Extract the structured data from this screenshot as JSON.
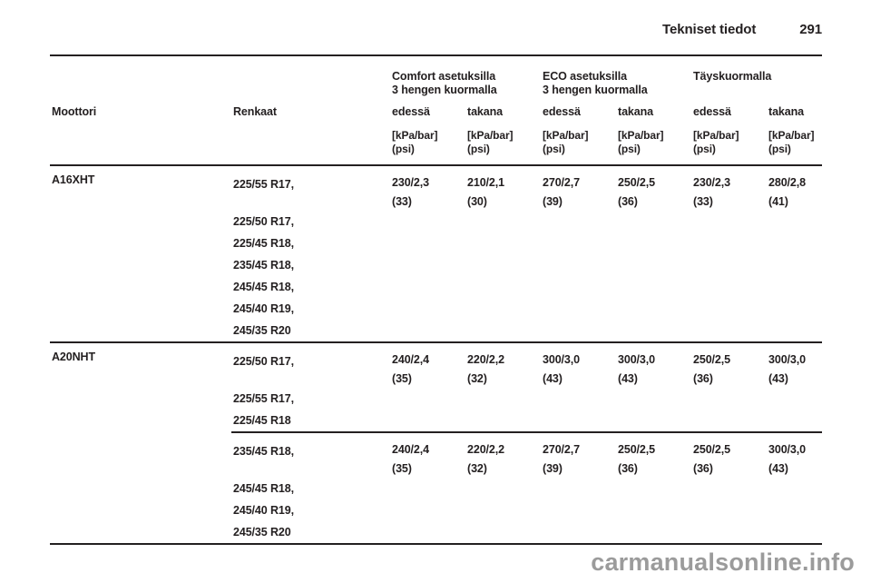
{
  "page": {
    "title": "Tekniset tiedot",
    "page_number": "291",
    "watermark": "carmanualsonline.info"
  },
  "colors": {
    "text": "#242021",
    "rule": "#242021",
    "watermark": "#9b9b9b"
  },
  "table": {
    "columns": {
      "engine": "Moottori",
      "tires": "Renkaat",
      "front": "edessä",
      "rear": "takana"
    },
    "groups": [
      {
        "line1": "Comfort asetuksilla",
        "line2": "3 hengen kuormalla"
      },
      {
        "line1": "ECO asetuksilla",
        "line2": "3 hengen kuormalla"
      },
      {
        "line1": "Täyskuormalla",
        "line2": ""
      }
    ],
    "units": {
      "line1": "[kPa/bar]",
      "line2": "(psi)"
    },
    "rows": [
      {
        "engine": "A16XHT",
        "tires": [
          "225/55 R17,",
          "225/50 R17,",
          "225/45 R18,",
          "235/45 R18,",
          "245/45 R18,",
          "245/40 R19,",
          "245/35 R20"
        ],
        "values": [
          {
            "kpa": "230/2,3",
            "psi": "(33)"
          },
          {
            "kpa": "210/2,1",
            "psi": "(30)"
          },
          {
            "kpa": "270/2,7",
            "psi": "(39)"
          },
          {
            "kpa": "250/2,5",
            "psi": "(36)"
          },
          {
            "kpa": "230/2,3",
            "psi": "(33)"
          },
          {
            "kpa": "280/2,8",
            "psi": "(41)"
          }
        ]
      },
      {
        "engine": "A20NHT",
        "tires": [
          "225/50 R17,",
          "225/55 R17,",
          "225/45 R18"
        ],
        "values": [
          {
            "kpa": "240/2,4",
            "psi": "(35)"
          },
          {
            "kpa": "220/2,2",
            "psi": "(32)"
          },
          {
            "kpa": "300/3,0",
            "psi": "(43)"
          },
          {
            "kpa": "300/3,0",
            "psi": "(43)"
          },
          {
            "kpa": "250/2,5",
            "psi": "(36)"
          },
          {
            "kpa": "300/3,0",
            "psi": "(43)"
          }
        ]
      },
      {
        "engine": "",
        "tires": [
          "235/45 R18,",
          "245/45 R18,",
          "245/40 R19,",
          "245/35 R20"
        ],
        "values": [
          {
            "kpa": "240/2,4",
            "psi": "(35)"
          },
          {
            "kpa": "220/2,2",
            "psi": "(32)"
          },
          {
            "kpa": "270/2,7",
            "psi": "(39)"
          },
          {
            "kpa": "250/2,5",
            "psi": "(36)"
          },
          {
            "kpa": "250/2,5",
            "psi": "(36)"
          },
          {
            "kpa": "300/3,0",
            "psi": "(43)"
          }
        ]
      }
    ]
  }
}
